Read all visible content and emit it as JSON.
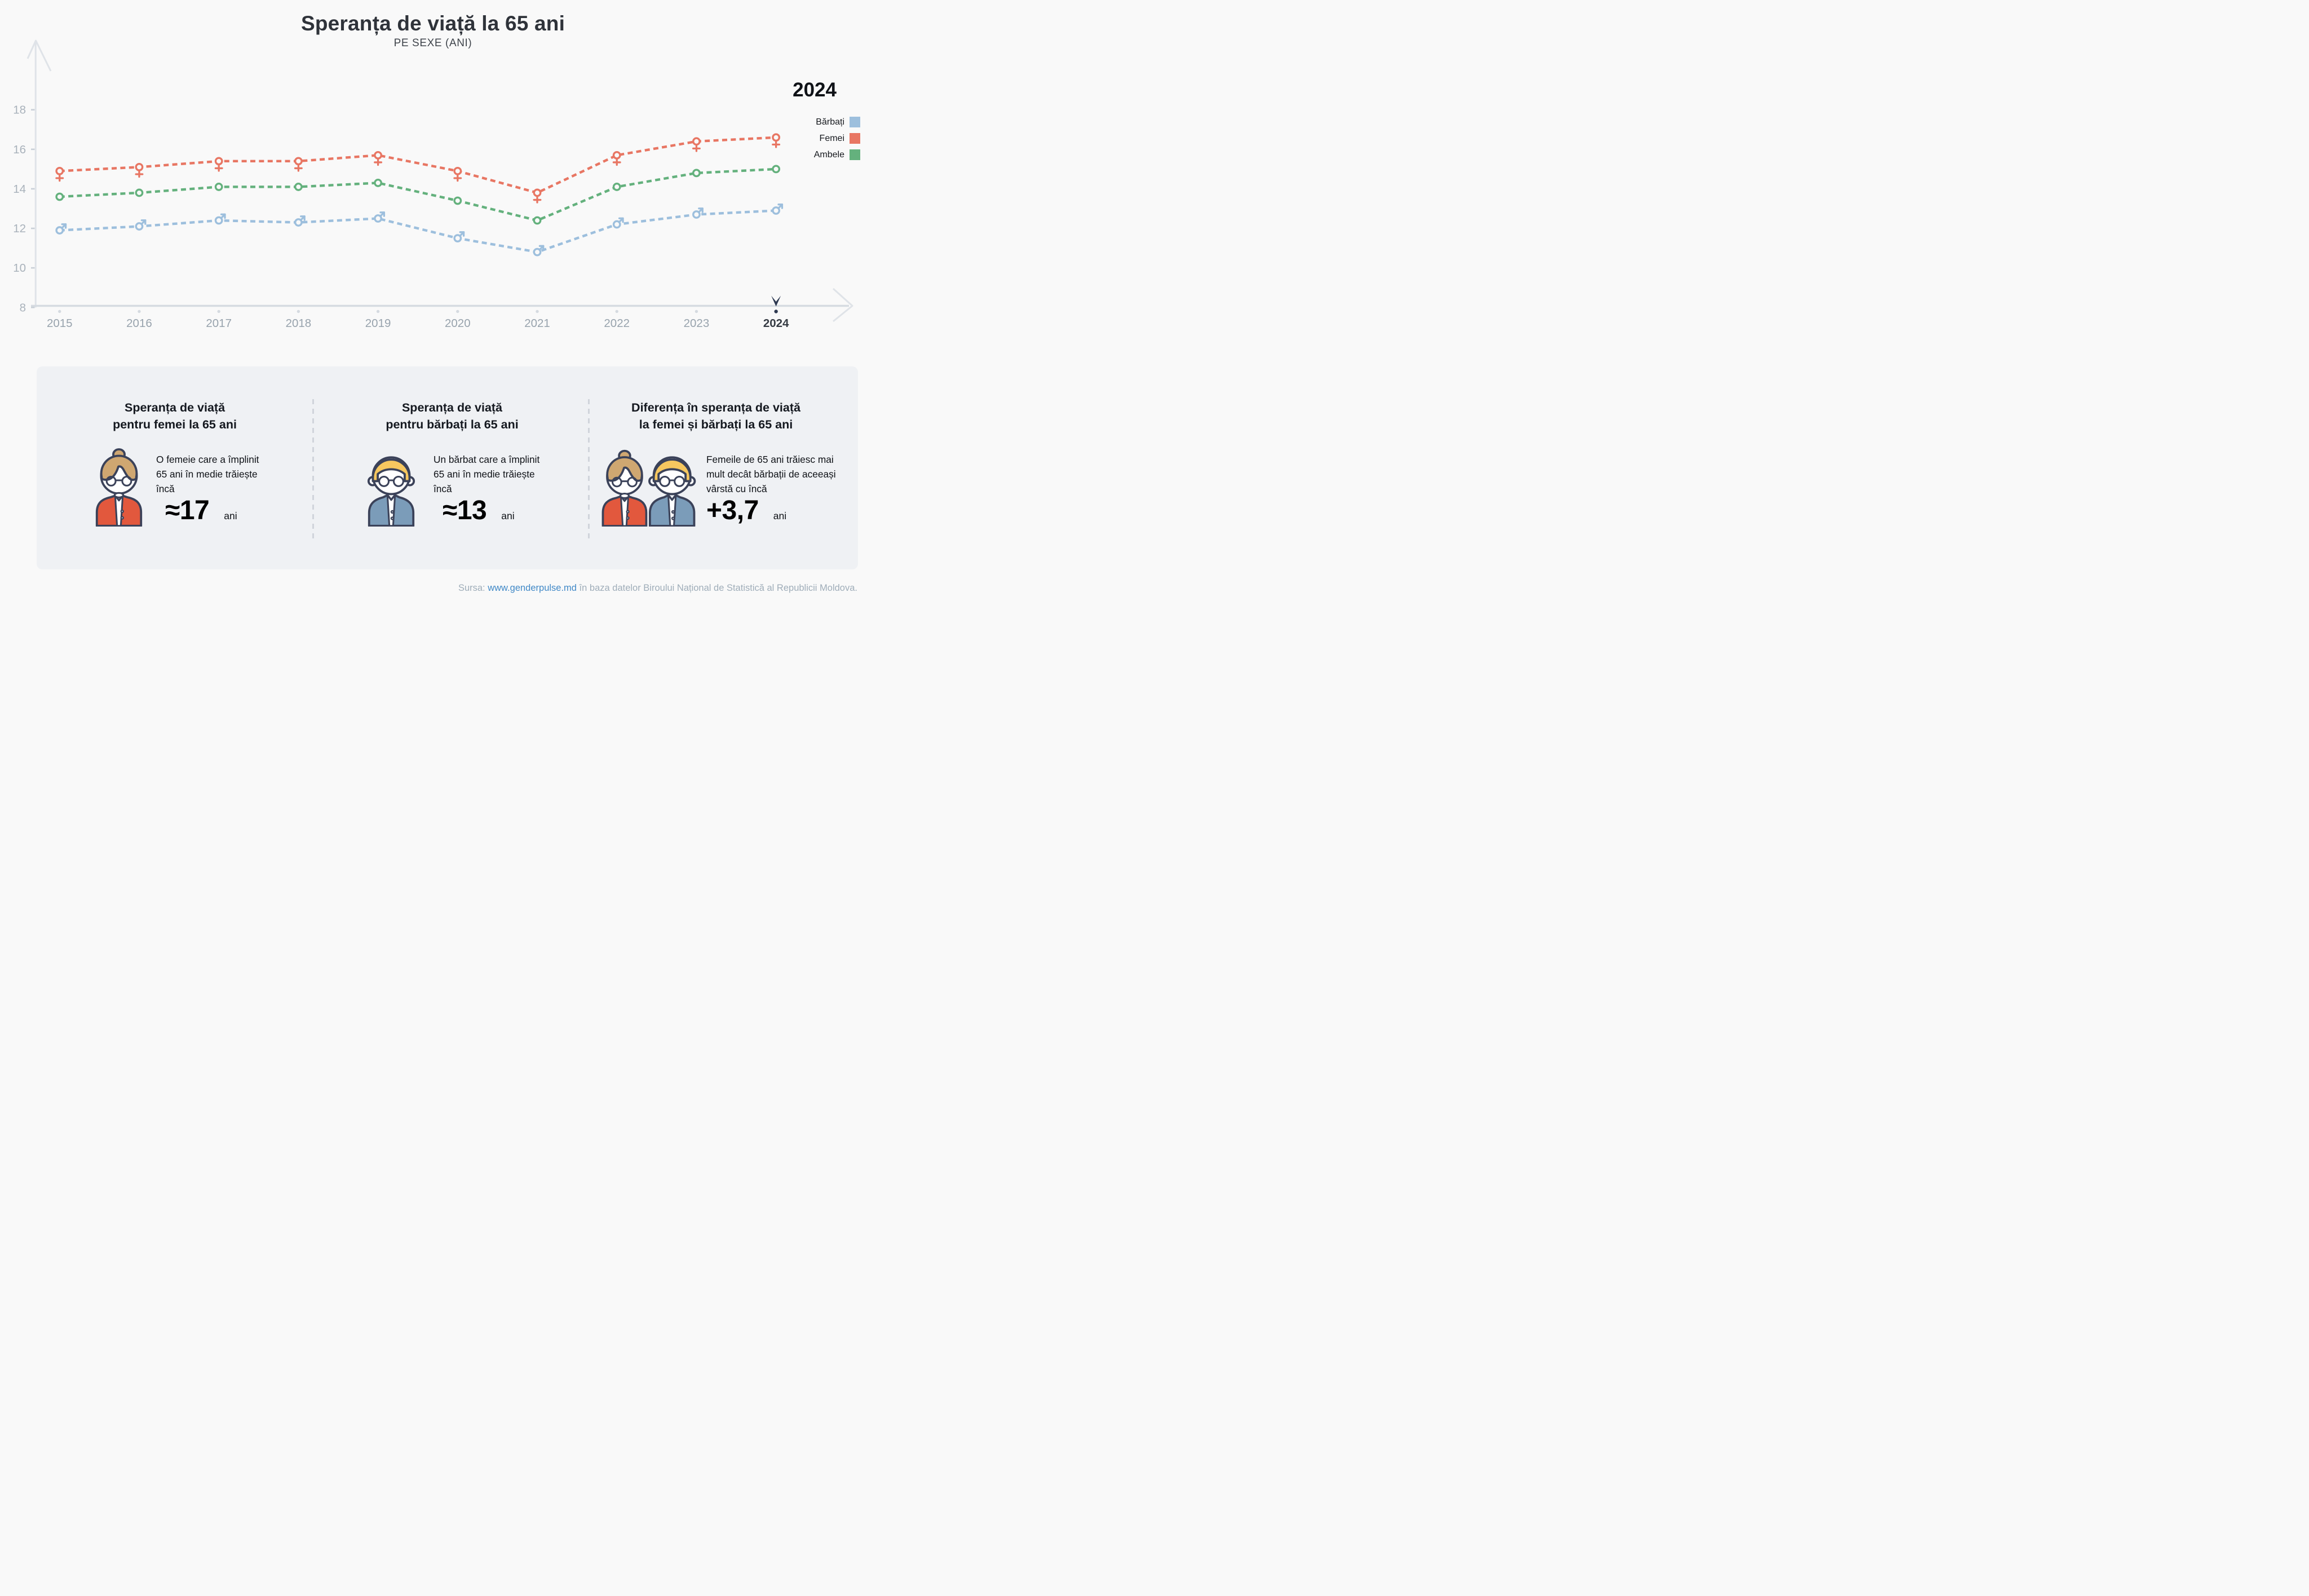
{
  "header": {
    "title": "Speranța de viață la 65 ani",
    "subtitle": "PE SEXE (ANI)"
  },
  "legend": {
    "year": "2024",
    "items": [
      {
        "label": "Bărbați",
        "color": "#9dbfdd"
      },
      {
        "label": "Femei",
        "color": "#e87663"
      },
      {
        "label": "Ambele",
        "color": "#64b17d"
      }
    ]
  },
  "chart_data": {
    "type": "line",
    "x": [
      2015,
      2016,
      2017,
      2018,
      2019,
      2020,
      2021,
      2022,
      2023,
      2024
    ],
    "yticks": [
      8,
      10,
      12,
      14,
      16,
      18
    ],
    "ylim": [
      8,
      19
    ],
    "grid": false,
    "legend_position": "top-right",
    "highlight_year": 2024,
    "line_style": "dashed",
    "series": [
      {
        "name": "Femei",
        "marker": "female",
        "color": "#e87663",
        "values": [
          14.9,
          15.1,
          15.4,
          15.4,
          15.7,
          14.9,
          13.8,
          15.7,
          16.4,
          16.6
        ]
      },
      {
        "name": "Ambele",
        "marker": "circle",
        "color": "#64b17d",
        "values": [
          13.6,
          13.8,
          14.1,
          14.1,
          14.3,
          13.4,
          12.4,
          14.1,
          14.8,
          15.0
        ]
      },
      {
        "name": "Bărbați",
        "marker": "male",
        "color": "#9dbfdd",
        "values": [
          11.9,
          12.1,
          12.4,
          12.3,
          12.5,
          11.5,
          10.8,
          12.2,
          12.7,
          12.9
        ]
      }
    ]
  },
  "cards": [
    {
      "title1": "Speranța de viață",
      "title2": "pentru femei la 65 ani",
      "icon": "elderly-woman-icon",
      "body": "O femeie care a împlinit 65 ani în medie trăiește încă",
      "value": "≈17",
      "unit": "ani"
    },
    {
      "title1": "Speranța de viață",
      "title2": "pentru bărbați la 65 ani",
      "icon": "elderly-man-icon",
      "body": "Un bărbat care a împlinit 65 ani în medie trăiește încă",
      "value": "≈13",
      "unit": "ani"
    },
    {
      "title1": "Diferența în speranța de viață",
      "title2": "la femei și bărbați la 65 ani",
      "icon": "elderly-couple-icon",
      "body": "Femeile de 65 ani trăiesc mai mult decât bărbații de aceeași vârstă cu încă",
      "value": "+3,7",
      "unit": "ani"
    }
  ],
  "footer": {
    "prefix": "Sursa: ",
    "link": "www.genderpulse.md",
    "suffix": " în baza datelor Biroului Național de Statistică al Republicii Moldova."
  },
  "palette": {
    "bg": "#f9f9f9",
    "card_bg": "#eff1f4",
    "navy": "#3b4259",
    "dark": "#2e3a52",
    "hairW": "#cfa771",
    "hairM": "#f6c75f",
    "cardigan": "#e2583d",
    "suit": "#7b9cb9",
    "blue": "#9dbfdd",
    "red": "#e87663",
    "green": "#64b17d",
    "link": "#4189c7",
    "footer": "#9fadb9"
  }
}
